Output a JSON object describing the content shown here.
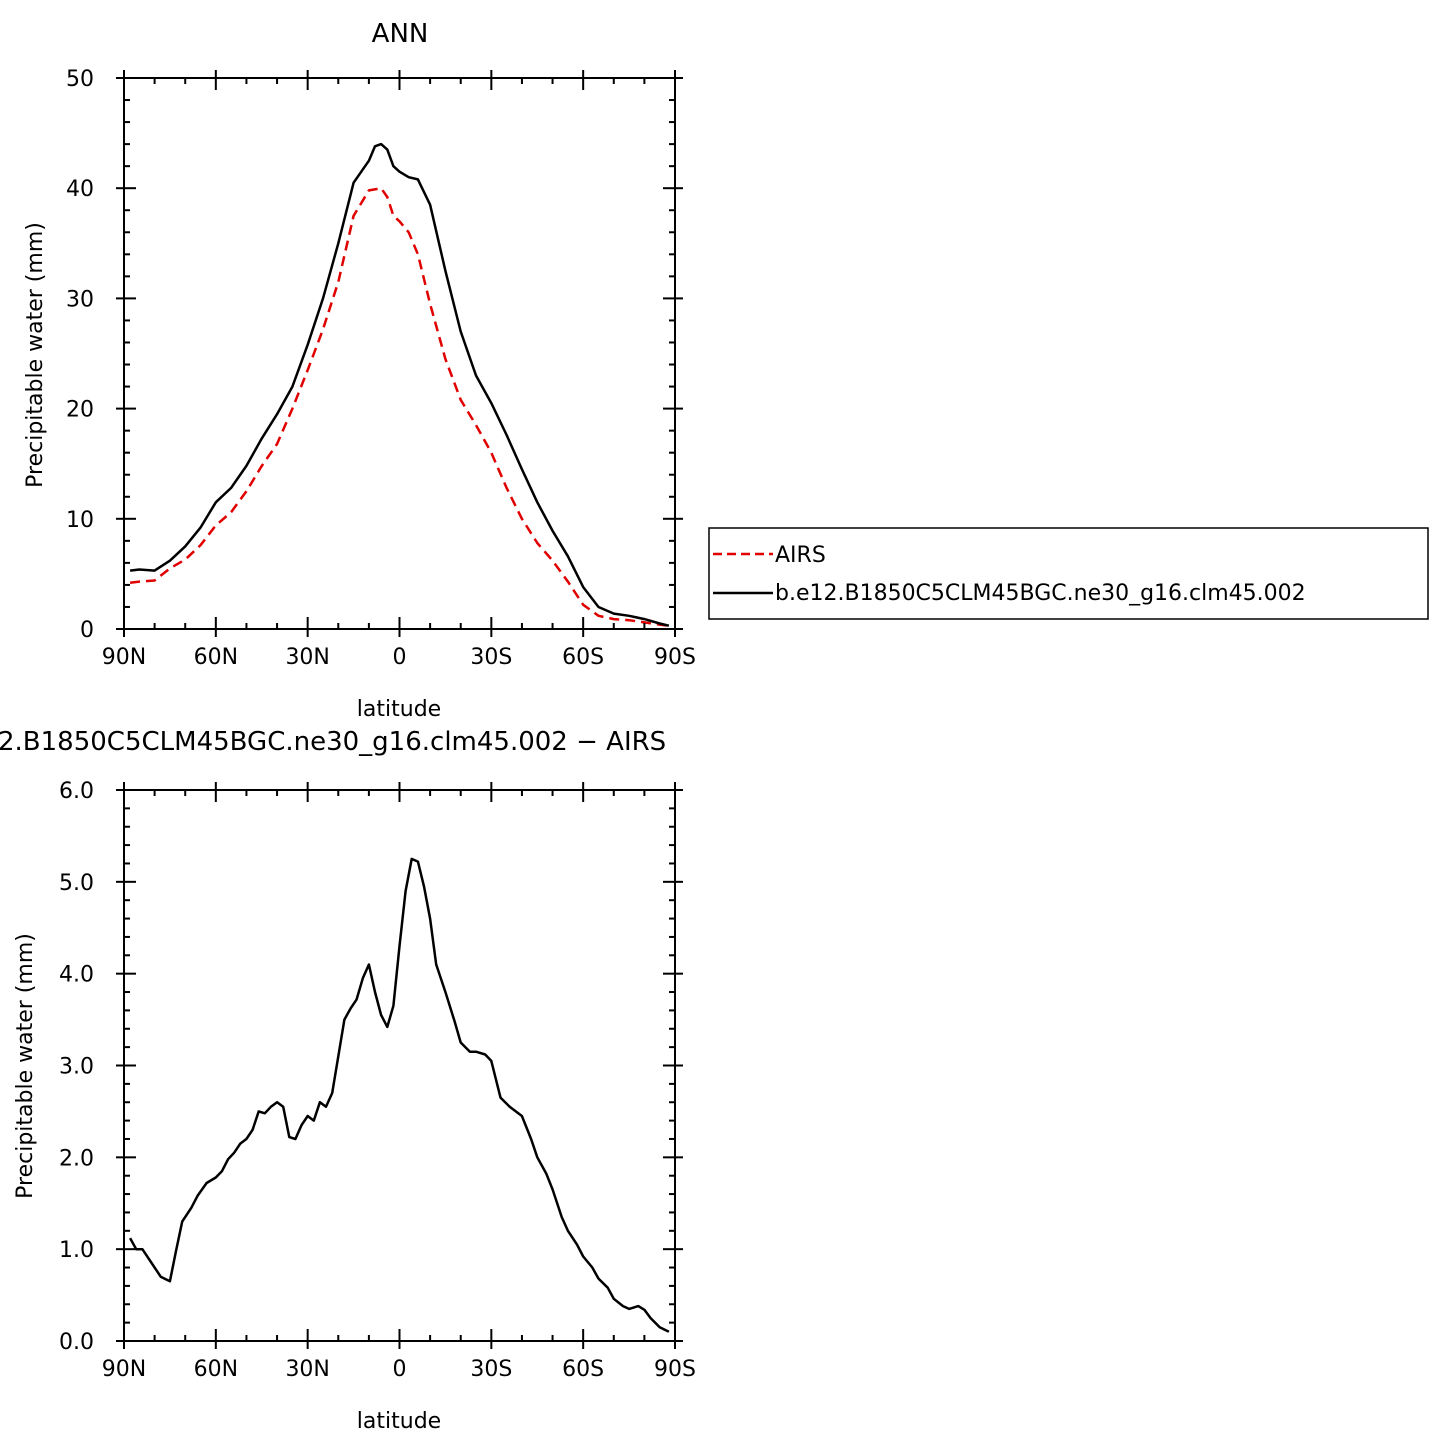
{
  "chart_data": [
    {
      "type": "line",
      "title": "ANN",
      "xlabel": "latitude",
      "ylabel": "Precipitable water (mm)",
      "xlim": [
        -90,
        90
      ],
      "ylim": [
        0,
        50
      ],
      "x_tick_values": [
        -90,
        -60,
        -30,
        0,
        30,
        60,
        90
      ],
      "x_tick_labels": [
        "90N",
        "60N",
        "30N",
        "0",
        "30S",
        "60S",
        "90S"
      ],
      "y_tick_values": [
        0,
        10,
        20,
        30,
        40,
        50
      ],
      "y_tick_labels": [
        "0",
        "10",
        "20",
        "30",
        "40",
        "50"
      ],
      "grid": false,
      "legend_position": "right",
      "series": [
        {
          "name": "AIRS",
          "color": "#e00000",
          "dash": true,
          "x": [
            -88,
            -85,
            -80,
            -75,
            -70,
            -65,
            -60,
            -55,
            -50,
            -45,
            -40,
            -35,
            -30,
            -25,
            -20,
            -15,
            -10,
            -6,
            -4,
            -2,
            0,
            3,
            6,
            10,
            15,
            20,
            25,
            30,
            35,
            40,
            45,
            50,
            55,
            60,
            65,
            70,
            75,
            80,
            85,
            88
          ],
          "values": [
            4.2,
            4.3,
            4.4,
            5.5,
            6.3,
            7.6,
            9.4,
            10.6,
            12.5,
            14.8,
            16.8,
            20.0,
            23.5,
            27.2,
            31.5,
            37.5,
            39.8,
            40.0,
            39.2,
            37.5,
            37.0,
            36.0,
            34.0,
            29.5,
            24.5,
            20.8,
            18.5,
            16.0,
            12.8,
            10.0,
            7.8,
            6.2,
            4.3,
            2.2,
            1.2,
            0.9,
            0.8,
            0.6,
            0.4,
            0.3
          ]
        },
        {
          "name": "b.e12.B1850C5CLM45BGC.ne30_g16.clm45.002",
          "color": "#000000",
          "dash": false,
          "x": [
            -88,
            -85,
            -80,
            -75,
            -70,
            -65,
            -60,
            -55,
            -50,
            -45,
            -40,
            -35,
            -30,
            -25,
            -20,
            -15,
            -10,
            -8,
            -6,
            -4,
            -2,
            0,
            3,
            6,
            10,
            15,
            20,
            25,
            30,
            35,
            40,
            45,
            50,
            55,
            60,
            65,
            70,
            75,
            80,
            85,
            88
          ],
          "values": [
            5.3,
            5.4,
            5.3,
            6.2,
            7.5,
            9.2,
            11.5,
            12.8,
            14.8,
            17.3,
            19.5,
            22.0,
            25.8,
            30.0,
            35.0,
            40.5,
            42.5,
            43.8,
            44.0,
            43.5,
            42.0,
            41.5,
            41.0,
            40.8,
            38.5,
            32.5,
            27.0,
            23.0,
            20.5,
            17.6,
            14.5,
            11.5,
            8.9,
            6.6,
            3.8,
            2.0,
            1.4,
            1.2,
            0.9,
            0.5,
            0.3
          ]
        }
      ]
    },
    {
      "type": "line",
      "title": "2.B1850C5CLM45BGC.ne30_g16.clm45.002 − AIRS",
      "xlabel": "latitude",
      "ylabel": "Precipitable water (mm)",
      "xlim": [
        -90,
        90
      ],
      "ylim": [
        0,
        6
      ],
      "x_tick_values": [
        -90,
        -60,
        -30,
        0,
        30,
        60,
        90
      ],
      "x_tick_labels": [
        "90N",
        "60N",
        "30N",
        "0",
        "30S",
        "60S",
        "90S"
      ],
      "y_tick_values": [
        0,
        1,
        2,
        3,
        4,
        5,
        6
      ],
      "y_tick_labels": [
        "0.0",
        "1.0",
        "2.0",
        "3.0",
        "4.0",
        "5.0",
        "6.0"
      ],
      "grid": false,
      "series": [
        {
          "color": "#000000",
          "dash": false,
          "x": [
            -88,
            -86,
            -84,
            -80,
            -78,
            -75,
            -73,
            -71,
            -68,
            -66,
            -63,
            -60,
            -58,
            -56,
            -54,
            -52,
            -50,
            -48,
            -46,
            -44,
            -42,
            -40,
            -38,
            -36,
            -34,
            -32,
            -30,
            -28,
            -26,
            -24,
            -22,
            -20,
            -18,
            -16,
            -14,
            -12,
            -10,
            -8,
            -6,
            -4,
            -2,
            0,
            2,
            4,
            6,
            8,
            10,
            12,
            15,
            18,
            20,
            23,
            25,
            28,
            30,
            33,
            36,
            40,
            43,
            45,
            48,
            50,
            53,
            55,
            58,
            60,
            63,
            65,
            68,
            70,
            73,
            75,
            78,
            80,
            82,
            85,
            88
          ],
          "values": [
            1.12,
            1.0,
            1.0,
            0.8,
            0.7,
            0.65,
            0.98,
            1.3,
            1.45,
            1.58,
            1.72,
            1.78,
            1.85,
            1.98,
            2.05,
            2.15,
            2.2,
            2.3,
            2.5,
            2.48,
            2.55,
            2.6,
            2.55,
            2.22,
            2.2,
            2.35,
            2.45,
            2.4,
            2.6,
            2.55,
            2.7,
            3.1,
            3.5,
            3.62,
            3.72,
            3.95,
            4.1,
            3.8,
            3.55,
            3.42,
            3.65,
            4.3,
            4.9,
            5.25,
            5.22,
            4.95,
            4.6,
            4.1,
            3.8,
            3.48,
            3.25,
            3.15,
            3.15,
            3.12,
            3.05,
            2.65,
            2.55,
            2.45,
            2.2,
            2.0,
            1.82,
            1.65,
            1.35,
            1.2,
            1.05,
            0.92,
            0.8,
            0.68,
            0.58,
            0.46,
            0.38,
            0.35,
            0.38,
            0.34,
            0.25,
            0.15,
            0.1
          ]
        }
      ]
    }
  ]
}
